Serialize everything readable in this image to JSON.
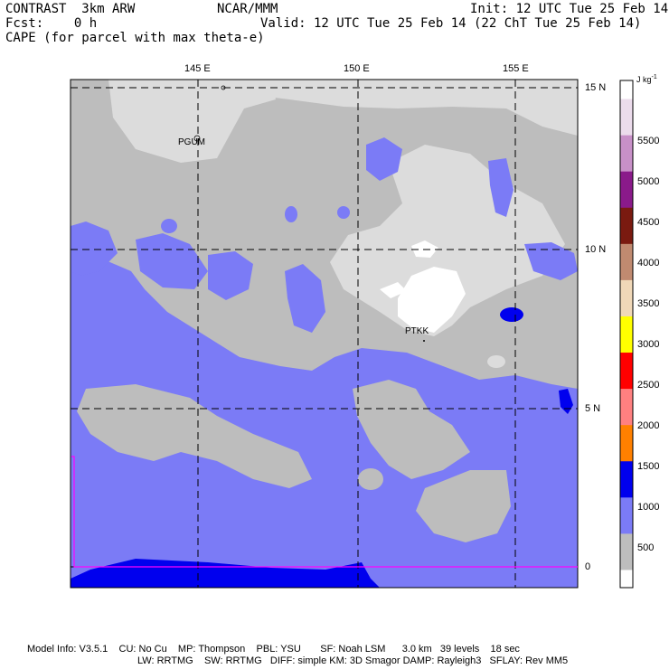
{
  "header": {
    "model": "CONTRAST  3km ARW",
    "org": "NCAR/MMM",
    "init": "Init: 12 UTC Tue 25 Feb 14",
    "fcst": "Fcst:    0 h",
    "valid": "Valid: 12 UTC Tue 25 Feb 14 (22 ChT Tue 25 Feb 14)",
    "field": "CAPE (for parcel with max theta-e)"
  },
  "axes": {
    "lon_labels": [
      "145 E",
      "150 E",
      "155 E"
    ],
    "lat_labels": [
      "15 N",
      "10 N",
      "5 N",
      "0"
    ]
  },
  "stations": [
    "PGUM",
    "PTKK"
  ],
  "colorbar": {
    "unit": "J kg",
    "unit_exp": "-1",
    "labels": [
      "5500",
      "5000",
      "4500",
      "4000",
      "3500",
      "3000",
      "2500",
      "2000",
      "1500",
      "1000",
      "500"
    ],
    "colors": [
      "#ffffff",
      "#bdbdbd",
      "#bdbdbd",
      "#7b7bf6",
      "#7b7bf6",
      "#0000ee",
      "#0000ee",
      "#ff8000",
      "#ff8000",
      "#ff8080",
      "#ff8080",
      "#ff0000",
      "#ff0000",
      "#ffff00",
      "#ffff00",
      "#f0d8b8",
      "#f0d8b8",
      "#c08a70",
      "#c08a70",
      "#7a1a10",
      "#7a1a10",
      "#8a1a8a",
      "#8a1a8a",
      "#c890c8",
      "#c890c8",
      "#ecdcec",
      "#ecdcec",
      "#ffffff"
    ]
  },
  "map_colors": {
    "land_gray": "#bdbdbd",
    "light_gray": "#dcdcdc",
    "light_blue": "#7b7bf6",
    "deep_blue": "#0000ee",
    "white": "#ffffff",
    "boundary": "#ff00ff"
  },
  "footer": {
    "line1": "Model Info: V3.5.1    CU: No Cu    MP: Thompson    PBL: YSU       SF: Noah LSM      3.0 km   39 levels    18 sec",
    "line2": "LW: RRTMG    SW: RRTMG   DIFF: simple KM: 3D Smagor DAMP: Rayleigh3   SFLAY: Rev MM5"
  }
}
